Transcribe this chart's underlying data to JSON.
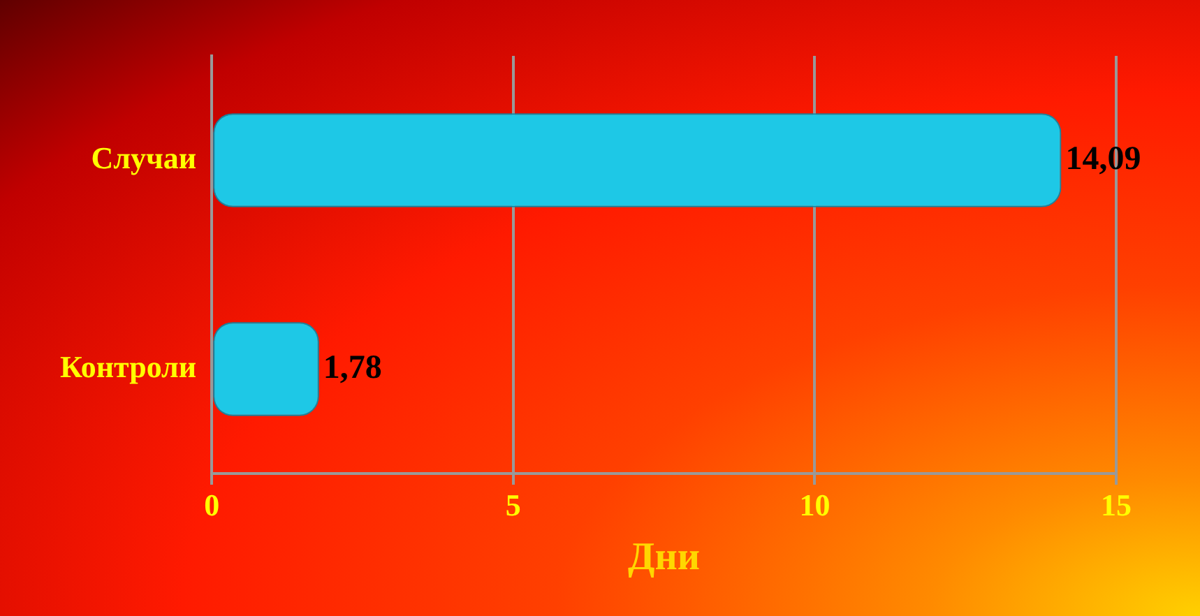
{
  "chart_data": {
    "type": "bar",
    "orientation": "horizontal",
    "categories": [
      "Случаи",
      "Контроли"
    ],
    "values": [
      14.09,
      1.78
    ],
    "color": "#1ec8e6",
    "value_labels": [
      "14,09",
      "1,78"
    ],
    "xlabel": "Дни",
    "xlim": [
      0,
      15
    ],
    "xticks": [
      0,
      5,
      10,
      15
    ],
    "grid": "x",
    "legend": false
  }
}
